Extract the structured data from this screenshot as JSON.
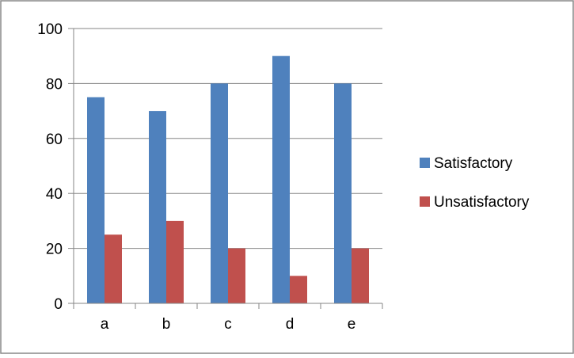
{
  "chart_data": {
    "type": "bar",
    "title": "",
    "xlabel": "",
    "ylabel": "",
    "categories": [
      "a",
      "b",
      "c",
      "d",
      "e"
    ],
    "series": [
      {
        "name": "Satisfactory",
        "values": [
          75,
          70,
          80,
          90,
          80
        ],
        "color": "#4F81BD"
      },
      {
        "name": "Unsatisfactory",
        "values": [
          25,
          30,
          20,
          10,
          20
        ],
        "color": "#C0504D"
      }
    ],
    "ylim": [
      0,
      100
    ],
    "yticks": [
      0,
      20,
      40,
      60,
      80,
      100
    ],
    "grid": true,
    "legend_position": "right"
  }
}
